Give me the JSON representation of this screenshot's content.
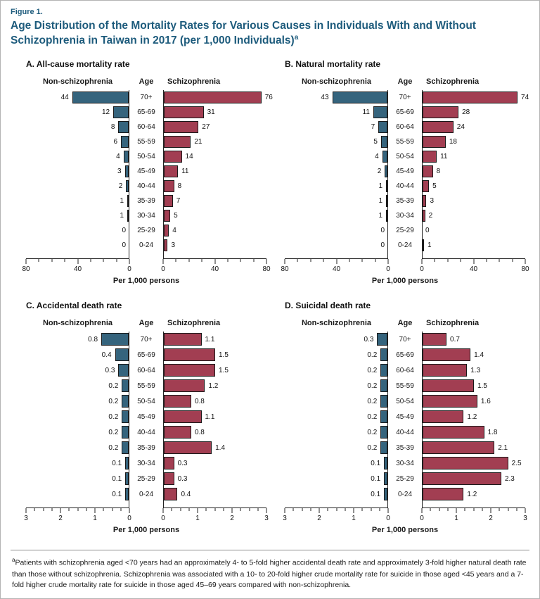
{
  "figure": {
    "label": "Figure 1.",
    "title": "Age Distribution of the Mortality Rates for Various Causes in Individuals With and Without Schizophrenia in Taiwan in 2017 (per 1,000 Individuals)",
    "title_superscript": "a",
    "footnote_marker": "a",
    "footnote": "Patients with schizophrenia aged <70 years had an approximately 4- to 5-fold higher accidental death rate and approximately 3-fold higher natural death rate than those without schizophrenia. Schizophrenia was associated with a 10- to 20-fold higher crude mortality rate for suicide in those aged <45 years and a 7-fold higher crude mortality rate for suicide in those aged 45–69 years compared with non-schizophrenia."
  },
  "colors": {
    "non_schizophrenia": "#35647d",
    "schizophrenia": "#a23e52",
    "title_blue": "#1d5b7c"
  },
  "chart_data": [
    {
      "id": "A",
      "type": "bar",
      "orientation": "pyramid",
      "title": "A. All-cause mortality rate",
      "left_label": "Non-schizophrenia",
      "center_label": "Age",
      "right_label": "Schizophrenia",
      "xlabel": "Per 1,000 persons",
      "axis_max": 80,
      "major_ticks": [
        0,
        40,
        80
      ],
      "minor_step": 10,
      "categories": [
        "70+",
        "65-69",
        "60-64",
        "55-59",
        "50-54",
        "45-49",
        "40-44",
        "35-39",
        "30-34",
        "25-29",
        "0-24"
      ],
      "series": [
        {
          "name": "Non-schizophrenia",
          "side": "left",
          "values": [
            44,
            12,
            8,
            6,
            4,
            3,
            2,
            1,
            1,
            0,
            0
          ]
        },
        {
          "name": "Schizophrenia",
          "side": "right",
          "values": [
            76,
            31,
            27,
            21,
            14,
            11,
            8,
            7,
            5,
            4,
            3
          ]
        }
      ]
    },
    {
      "id": "B",
      "type": "bar",
      "orientation": "pyramid",
      "title": "B. Natural mortality rate",
      "left_label": "Non-schizophrenia",
      "center_label": "Age",
      "right_label": "Schizophrenia",
      "xlabel": "Per 1,000 persons",
      "axis_max": 80,
      "major_ticks": [
        0,
        40,
        80
      ],
      "minor_step": 10,
      "categories": [
        "70+",
        "65-69",
        "60-64",
        "55-59",
        "50-54",
        "45-49",
        "40-44",
        "35-39",
        "30-34",
        "25-29",
        "0-24"
      ],
      "series": [
        {
          "name": "Non-schizophrenia",
          "side": "left",
          "values": [
            43,
            11,
            7,
            5,
            4,
            2,
            1,
            1,
            1,
            0,
            0
          ]
        },
        {
          "name": "Schizophrenia",
          "side": "right",
          "values": [
            74,
            28,
            24,
            18,
            11,
            8,
            5,
            3,
            2,
            0,
            1
          ]
        }
      ]
    },
    {
      "id": "C",
      "type": "bar",
      "orientation": "pyramid",
      "title": "C. Accidental death rate",
      "left_label": "Non-schizophrenia",
      "center_label": "Age",
      "right_label": "Schizophrenia",
      "xlabel": "Per 1,000 persons",
      "axis_max": 3,
      "major_ticks": [
        0,
        1,
        2,
        3
      ],
      "minor_step": 0.25,
      "categories": [
        "70+",
        "65-69",
        "60-64",
        "55-59",
        "50-54",
        "45-49",
        "40-44",
        "35-39",
        "30-34",
        "25-29",
        "0-24"
      ],
      "series": [
        {
          "name": "Non-schizophrenia",
          "side": "left",
          "values": [
            0.8,
            0.4,
            0.3,
            0.2,
            0.2,
            0.2,
            0.2,
            0.2,
            0.1,
            0.1,
            0.1
          ]
        },
        {
          "name": "Schizophrenia",
          "side": "right",
          "values": [
            1.1,
            1.5,
            1.5,
            1.2,
            0.8,
            1.1,
            0.8,
            1.4,
            0.3,
            0.3,
            0.4
          ]
        }
      ]
    },
    {
      "id": "D",
      "type": "bar",
      "orientation": "pyramid",
      "title": "D. Suicidal death rate",
      "left_label": "Non-schizophrenia",
      "center_label": "Age",
      "right_label": "Schizophrenia",
      "xlabel": "Per 1,000 persons",
      "axis_max": 3,
      "major_ticks": [
        0,
        1,
        2,
        3
      ],
      "minor_step": 0.25,
      "categories": [
        "70+",
        "65-69",
        "60-64",
        "55-59",
        "50-54",
        "45-49",
        "40-44",
        "35-39",
        "30-34",
        "25-29",
        "0-24"
      ],
      "series": [
        {
          "name": "Non-schizophrenia",
          "side": "left",
          "values": [
            0.3,
            0.2,
            0.2,
            0.2,
            0.2,
            0.2,
            0.2,
            0.2,
            0.1,
            0.1,
            0.1
          ]
        },
        {
          "name": "Schizophrenia",
          "side": "right",
          "values": [
            0.7,
            1.4,
            1.3,
            1.5,
            1.6,
            1.2,
            1.8,
            2.1,
            2.5,
            2.3,
            1.2
          ]
        }
      ]
    }
  ]
}
